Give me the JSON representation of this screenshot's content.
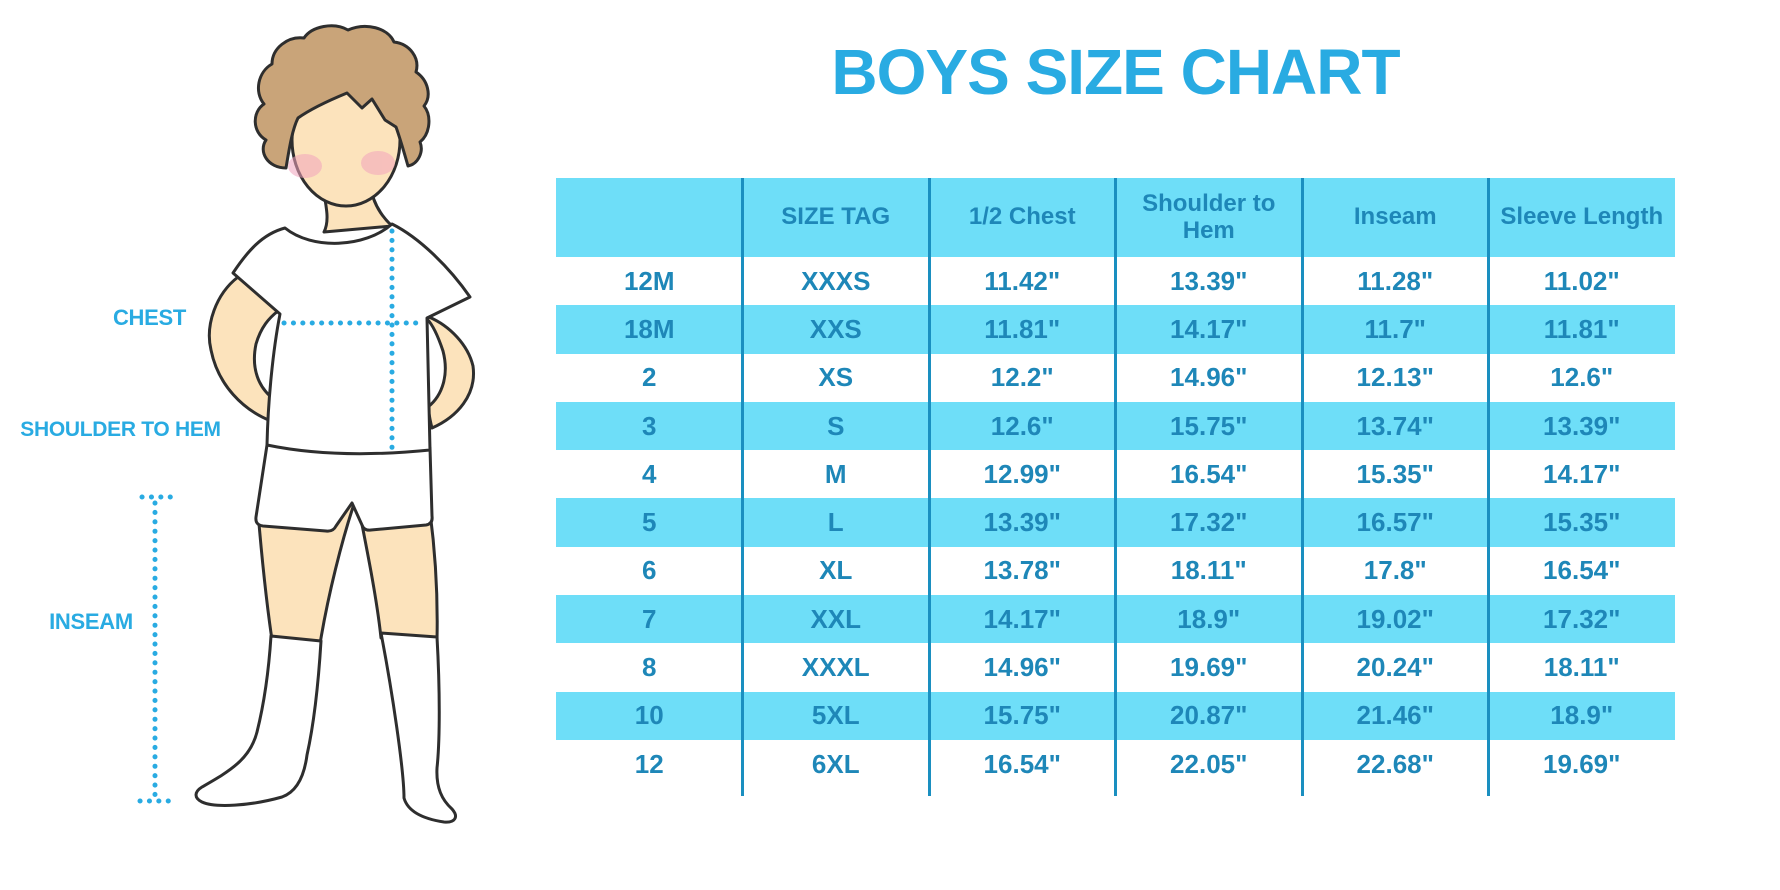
{
  "page": {
    "title": "BOYS SIZE CHART"
  },
  "figure_labels": {
    "chest": "CHEST",
    "shoulder_to_hem": "SHOULDER TO HEM",
    "inseam": "INSEAM"
  },
  "colors": {
    "accent_blue": "#29ABE2",
    "band_cyan": "#6EDEF8",
    "table_text_blue": "#1E87B8",
    "divider_blue": "#1A8FC0",
    "skin": "#FCE3BC",
    "hair": "#C9A479",
    "blush": "#F2A4BC",
    "outline": "#2E2E2E"
  },
  "chart_data": {
    "type": "table",
    "title": "BOYS SIZE CHART",
    "columns": [
      "",
      "SIZE TAG",
      "1/2 Chest",
      "Shoulder to Hem",
      "Inseam",
      "Sleeve Length"
    ],
    "rows": [
      [
        "12M",
        "XXXS",
        "11.42\"",
        "13.39\"",
        "11.28\"",
        "11.02\""
      ],
      [
        "18M",
        "XXS",
        "11.81\"",
        "14.17\"",
        "11.7\"",
        "11.81\""
      ],
      [
        "2",
        "XS",
        "12.2\"",
        "14.96\"",
        "12.13\"",
        "12.6\""
      ],
      [
        "3",
        "S",
        "12.6\"",
        "15.75\"",
        "13.74\"",
        "13.39\""
      ],
      [
        "4",
        "M",
        "12.99\"",
        "16.54\"",
        "15.35\"",
        "14.17\""
      ],
      [
        "5",
        "L",
        "13.39\"",
        "17.32\"",
        "16.57\"",
        "15.35\""
      ],
      [
        "6",
        "XL",
        "13.78\"",
        "18.11\"",
        "17.8\"",
        "16.54\""
      ],
      [
        "7",
        "XXL",
        "14.17\"",
        "18.9\"",
        "19.02\"",
        "17.32\""
      ],
      [
        "8",
        "XXXL",
        "14.96\"",
        "19.69\"",
        "20.24\"",
        "18.11\""
      ],
      [
        "10",
        "5XL",
        "15.75\"",
        "20.87\"",
        "21.46\"",
        "18.9\""
      ],
      [
        "12",
        "6XL",
        "16.54\"",
        "22.05\"",
        "22.68\"",
        "19.69\""
      ]
    ]
  }
}
